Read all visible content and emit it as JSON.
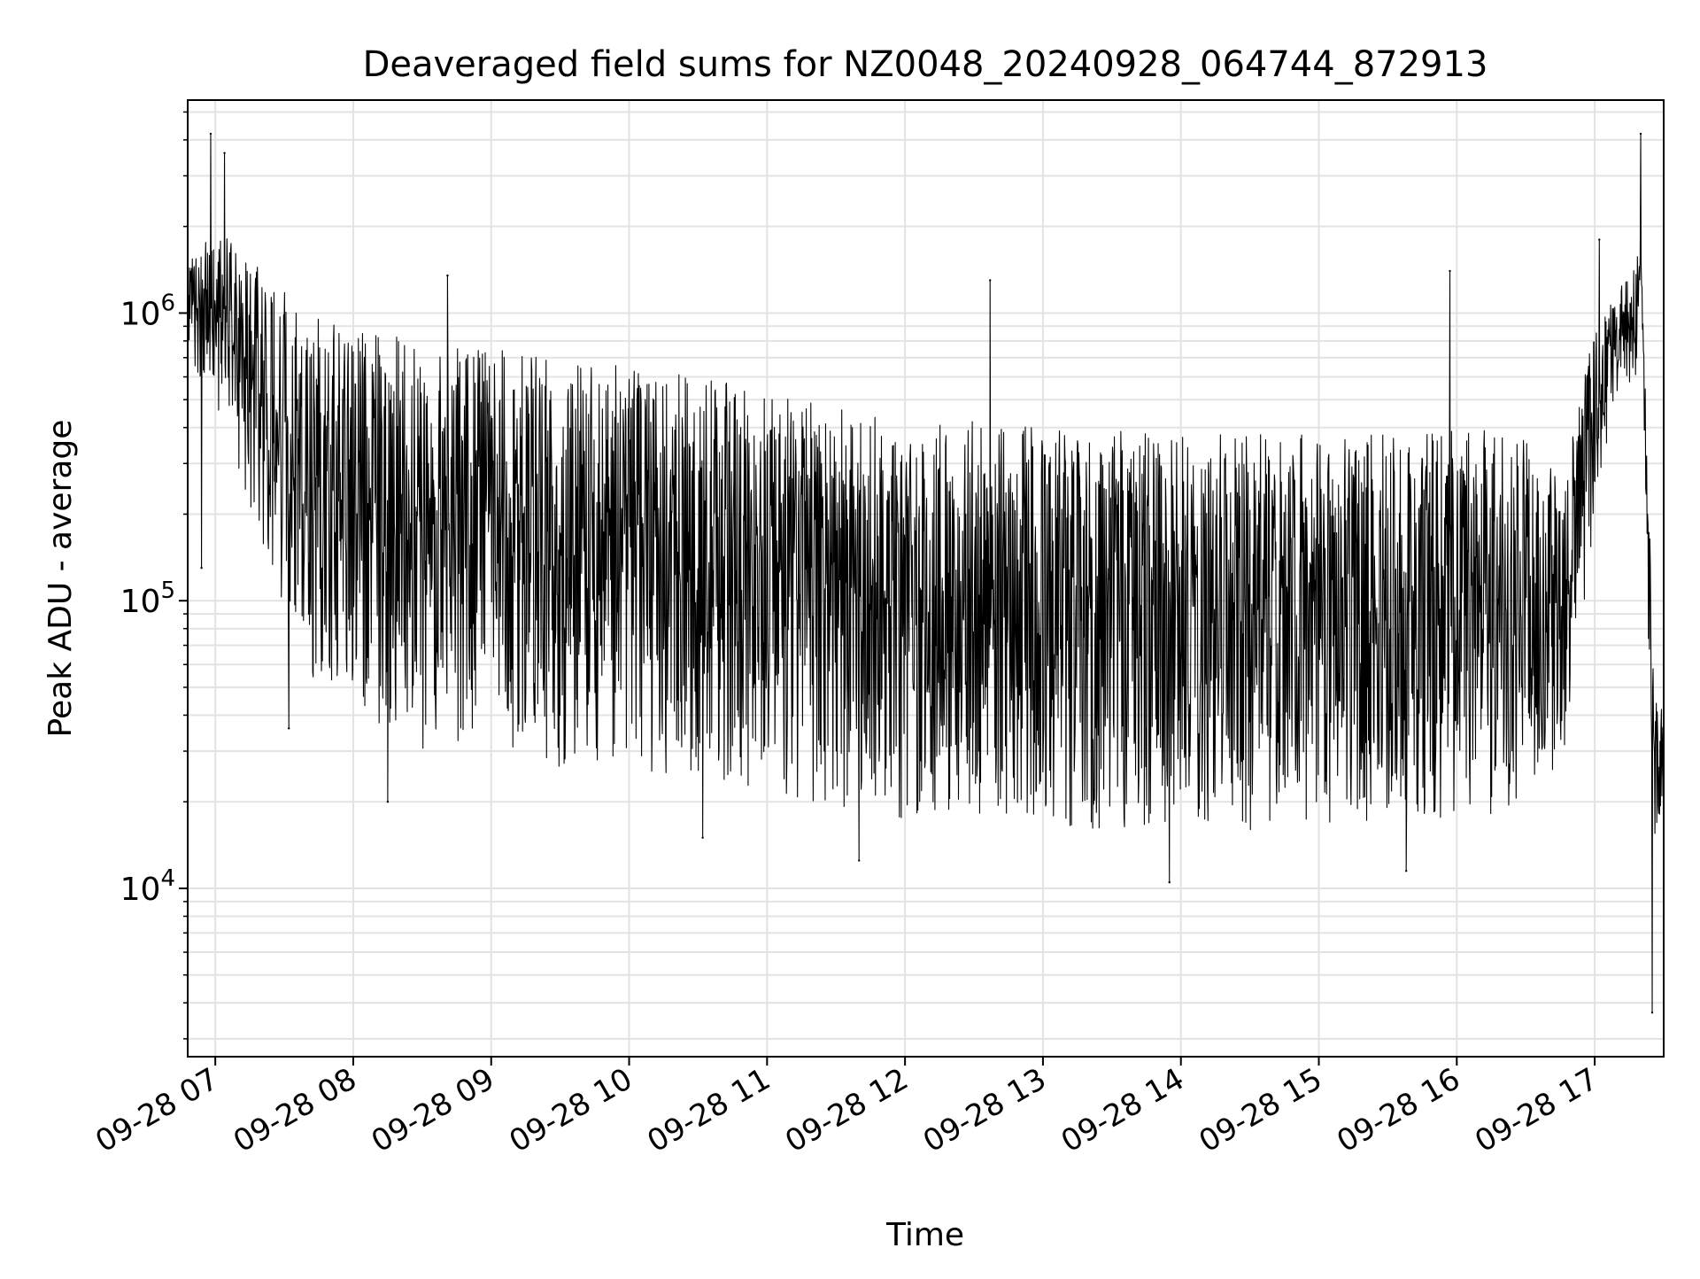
{
  "chart_data": {
    "type": "line",
    "title": "Deaveraged field sums for NZ0048_20240928_064744_872913",
    "xlabel": "Time",
    "ylabel": "Peak ADU - average",
    "yscale": "log",
    "grid": true,
    "legend": "none",
    "x_range": [
      "2024-09-28 06:48",
      "2024-09-28 17:30"
    ],
    "ylim": [
      2600,
      5500000
    ],
    "x_ticks": [
      {
        "value": "2024-09-28 07:00",
        "label": "09-28 07"
      },
      {
        "value": "2024-09-28 08:00",
        "label": "09-28 08"
      },
      {
        "value": "2024-09-28 09:00",
        "label": "09-28 09"
      },
      {
        "value": "2024-09-28 10:00",
        "label": "09-28 10"
      },
      {
        "value": "2024-09-28 11:00",
        "label": "09-28 11"
      },
      {
        "value": "2024-09-28 12:00",
        "label": "09-28 12"
      },
      {
        "value": "2024-09-28 13:00",
        "label": "09-28 13"
      },
      {
        "value": "2024-09-28 14:00",
        "label": "09-28 14"
      },
      {
        "value": "2024-09-28 15:00",
        "label": "09-28 15"
      },
      {
        "value": "2024-09-28 16:00",
        "label": "09-28 16"
      },
      {
        "value": "2024-09-28 17:00",
        "label": "09-28 17"
      }
    ],
    "y_ticks": [
      {
        "value": 10000,
        "base": "10",
        "exp": "4"
      },
      {
        "value": 100000,
        "base": "10",
        "exp": "5"
      },
      {
        "value": 1000000,
        "base": "10",
        "exp": "6"
      }
    ],
    "series": [
      {
        "color": "#000000",
        "envelope": [
          {
            "x": "2024-09-28 06:48",
            "high": 1500000,
            "low": 600000
          },
          {
            "x": "2024-09-28 07:00",
            "high": 2000000,
            "low": 500000
          },
          {
            "x": "2024-09-28 07:15",
            "high": 1500000,
            "low": 200000
          },
          {
            "x": "2024-09-28 07:30",
            "high": 1300000,
            "low": 80000
          },
          {
            "x": "2024-09-28 07:45",
            "high": 1000000,
            "low": 50000
          },
          {
            "x": "2024-09-28 08:00",
            "high": 900000,
            "low": 40000
          },
          {
            "x": "2024-09-28 08:30",
            "high": 800000,
            "low": 30000
          },
          {
            "x": "2024-09-28 09:00",
            "high": 750000,
            "low": 28000
          },
          {
            "x": "2024-09-28 09:30",
            "high": 700000,
            "low": 26000
          },
          {
            "x": "2024-09-28 10:00",
            "high": 650000,
            "low": 25000
          },
          {
            "x": "2024-09-28 10:30",
            "high": 600000,
            "low": 24000
          },
          {
            "x": "2024-09-28 11:00",
            "high": 550000,
            "low": 22000
          },
          {
            "x": "2024-09-28 11:30",
            "high": 500000,
            "low": 18000
          },
          {
            "x": "2024-09-28 12:00",
            "high": 450000,
            "low": 17000
          },
          {
            "x": "2024-09-28 13:00",
            "high": 400000,
            "low": 16000
          },
          {
            "x": "2024-09-28 14:00",
            "high": 380000,
            "low": 16000
          },
          {
            "x": "2024-09-28 15:00",
            "high": 380000,
            "low": 16000
          },
          {
            "x": "2024-09-28 15:45",
            "high": 380000,
            "low": 17000
          },
          {
            "x": "2024-09-28 16:00",
            "high": 400000,
            "low": 18000
          },
          {
            "x": "2024-09-28 16:30",
            "high": 380000,
            "low": 18000
          },
          {
            "x": "2024-09-28 16:48",
            "high": 300000,
            "low": 30000
          },
          {
            "x": "2024-09-28 17:00",
            "high": 900000,
            "low": 200000
          },
          {
            "x": "2024-09-28 17:10",
            "high": 1200000,
            "low": 500000
          },
          {
            "x": "2024-09-28 17:18",
            "high": 1500000,
            "low": 600000
          },
          {
            "x": "2024-09-28 17:20",
            "high": 1900000,
            "low": 1500000
          },
          {
            "x": "2024-09-28 17:23",
            "high": 300000,
            "low": 80000
          },
          {
            "x": "2024-09-28 17:26",
            "high": 50000,
            "low": 15000
          },
          {
            "x": "2024-09-28 17:30",
            "high": 40000,
            "low": 20000
          }
        ],
        "peaks": [
          {
            "x": "2024-09-28 06:58",
            "y": 4200000
          },
          {
            "x": "2024-09-28 07:04",
            "y": 3600000
          },
          {
            "x": "2024-09-28 08:41",
            "y": 1350000
          },
          {
            "x": "2024-09-28 12:37",
            "y": 1300000
          },
          {
            "x": "2024-09-28 15:57",
            "y": 1400000
          },
          {
            "x": "2024-09-28 17:02",
            "y": 1800000
          },
          {
            "x": "2024-09-28 17:20",
            "y": 4200000
          }
        ],
        "dips": [
          {
            "x": "2024-09-28 06:54",
            "y": 130000
          },
          {
            "x": "2024-09-28 07:32",
            "y": 36000
          },
          {
            "x": "2024-09-28 08:15",
            "y": 20000
          },
          {
            "x": "2024-09-28 10:32",
            "y": 15000
          },
          {
            "x": "2024-09-28 11:40",
            "y": 12500
          },
          {
            "x": "2024-09-28 13:55",
            "y": 10500
          },
          {
            "x": "2024-09-28 15:38",
            "y": 11500
          },
          {
            "x": "2024-09-28 17:25",
            "y": 3700
          }
        ]
      }
    ]
  }
}
